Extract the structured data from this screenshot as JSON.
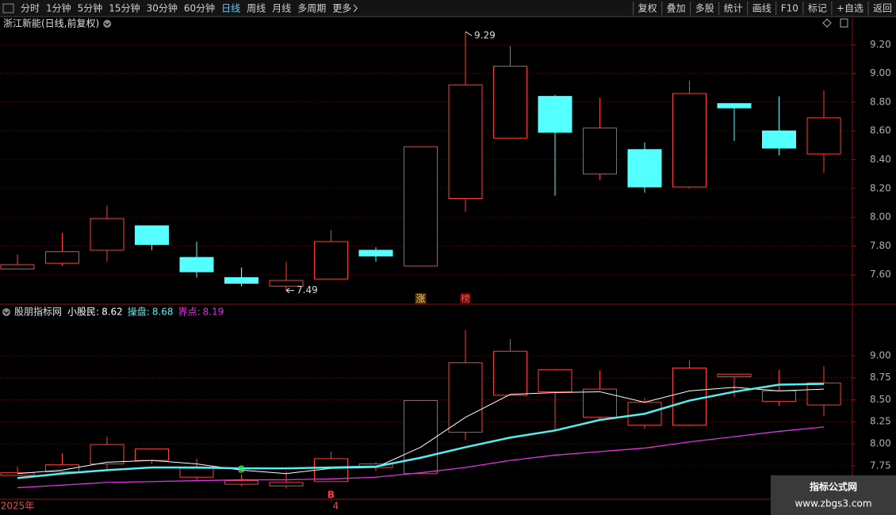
{
  "toolbar": {
    "left": [
      "分时",
      "1分钟",
      "5分钟",
      "15分钟",
      "30分钟",
      "60分钟",
      "日线",
      "周线",
      "月线",
      "多周期",
      "更多"
    ],
    "active": "日线",
    "right": [
      "复权",
      "叠加",
      "多股",
      "统计",
      "画线",
      "F10",
      "标记",
      "+自选",
      "返回"
    ]
  },
  "watermark": {
    "title": "指标公式网",
    "url": "www.zbgs3.com"
  },
  "chart_data": [
    {
      "type": "candlestick",
      "title": "浙江新能(日线,前复权)",
      "categories": [
        "2025年",
        null,
        null,
        null,
        null,
        null,
        null,
        "4",
        null,
        null,
        null,
        null,
        null,
        null,
        null,
        null,
        null,
        null,
        null
      ],
      "open": [
        7.64,
        7.68,
        7.77,
        7.94,
        7.72,
        7.58,
        7.52,
        7.57,
        7.77,
        7.66,
        8.13,
        8.55,
        8.84,
        8.3,
        8.47,
        8.21,
        8.79,
        8.6,
        8.44
      ],
      "high": [
        7.74,
        7.89,
        8.08,
        7.94,
        7.83,
        7.65,
        7.69,
        7.91,
        7.79,
        8.49,
        9.29,
        9.19,
        8.85,
        8.83,
        8.52,
        8.95,
        8.79,
        8.84,
        8.88
      ],
      "low": [
        7.64,
        7.66,
        7.69,
        7.77,
        7.58,
        7.52,
        7.49,
        7.57,
        7.69,
        7.66,
        8.04,
        8.55,
        8.15,
        8.26,
        8.17,
        8.2,
        8.53,
        8.43,
        8.31
      ],
      "close": [
        7.67,
        7.76,
        7.99,
        7.81,
        7.62,
        7.54,
        7.56,
        7.83,
        7.73,
        8.49,
        8.92,
        9.05,
        8.59,
        8.62,
        8.21,
        8.86,
        8.76,
        8.48,
        8.69
      ],
      "markers": [
        null,
        null,
        null,
        null,
        null,
        null,
        null,
        null,
        null,
        "涨",
        "榜",
        null,
        null,
        null,
        null,
        null,
        null,
        null,
        null
      ],
      "up_color": "#ff3c3c",
      "down_color": "#54ffff",
      "ylim": [
        7.4,
        9.4
      ],
      "yticks": [
        {
          "value": 9.2,
          "label": "9.20"
        },
        {
          "value": 9.0,
          "label": "9.00"
        },
        {
          "value": 8.8,
          "label": "8.80"
        },
        {
          "value": 8.6,
          "label": "8.60"
        },
        {
          "value": 8.4,
          "label": "8.40"
        },
        {
          "value": 8.2,
          "label": "8.20"
        },
        {
          "value": 8.0,
          "label": "8.00"
        },
        {
          "value": 7.8,
          "label": "7.80"
        },
        {
          "value": 7.6,
          "label": "7.60"
        }
      ],
      "grid": true
    },
    {
      "type": "indicator",
      "title": "股朋指标网",
      "series": [
        {
          "name": "小股民:",
          "color": "#ffffff",
          "values": [
            7.66,
            7.7,
            7.79,
            7.81,
            7.77,
            7.7,
            7.66,
            7.72,
            7.73,
            7.96,
            8.3,
            8.56,
            8.58,
            8.59,
            8.47,
            8.6,
            8.64,
            8.6,
            8.62
          ]
        },
        {
          "name": "操盘:",
          "color": "#4ef2f2",
          "values": [
            7.61,
            7.66,
            7.7,
            7.73,
            7.73,
            7.72,
            7.72,
            7.73,
            7.74,
            7.84,
            7.96,
            8.07,
            8.15,
            8.27,
            8.34,
            8.49,
            8.59,
            8.67,
            8.68
          ]
        },
        {
          "name": "界点:",
          "color": "#e030e0",
          "values": [
            7.5,
            7.53,
            7.56,
            7.57,
            7.58,
            7.59,
            7.59,
            7.6,
            7.62,
            7.67,
            7.73,
            7.81,
            7.87,
            7.91,
            7.95,
            8.02,
            8.08,
            8.14,
            8.19
          ]
        }
      ],
      "signals": [
        null,
        null,
        null,
        null,
        null,
        "S",
        null,
        "B",
        null,
        null,
        null,
        null,
        null,
        null,
        null,
        null,
        null,
        null,
        null
      ],
      "signal_colors": {
        "S": "#33dd33",
        "B": "#ff3c3c"
      },
      "ylim": [
        7.37,
        9.44
      ],
      "yticks": [
        {
          "value": 9.0,
          "label": "9.00"
        },
        {
          "value": 8.75,
          "label": "8.75"
        },
        {
          "value": 8.5,
          "label": "8.50"
        },
        {
          "value": 8.25,
          "label": "8.25"
        },
        {
          "value": 8.0,
          "label": "8.00"
        },
        {
          "value": 7.75,
          "label": "7.75"
        }
      ],
      "grid": true
    }
  ]
}
